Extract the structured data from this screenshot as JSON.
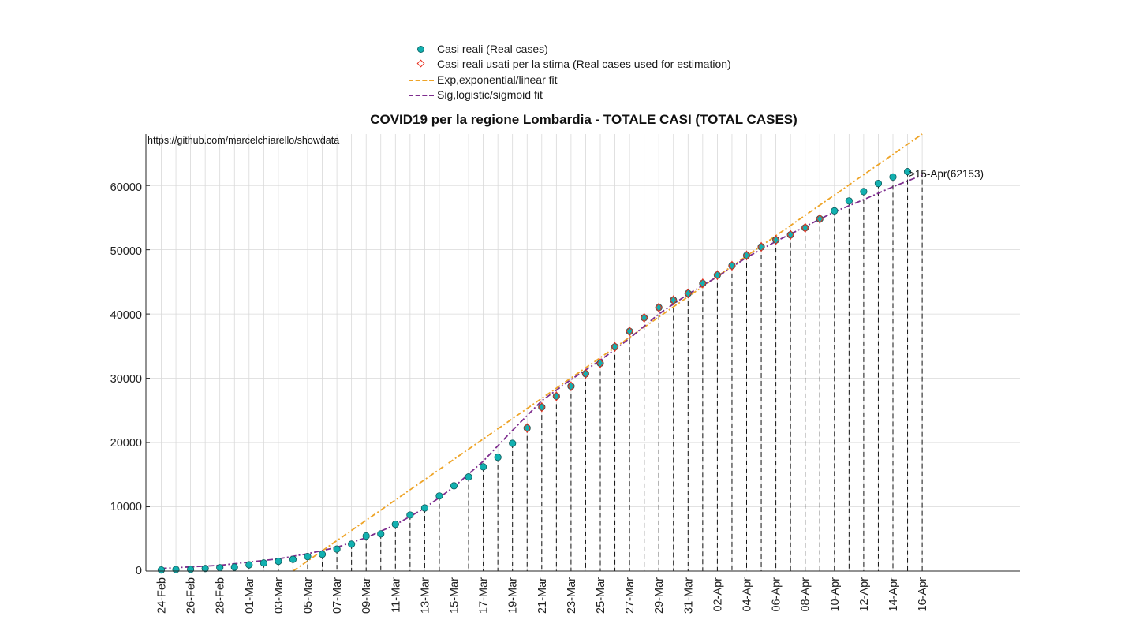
{
  "legend": {
    "items": [
      {
        "label": "Casi reali (Real cases)",
        "kind": "dot",
        "color": "#12b0b0"
      },
      {
        "label": "Casi reali usati per la stima (Real cases used for estimation)",
        "kind": "diamond",
        "color": "#e8301f"
      },
      {
        "label": "Exp,exponential/linear fit",
        "kind": "line",
        "color": "#eea428"
      },
      {
        "label": "Sig,logistic/sigmoid fit",
        "kind": "line",
        "color": "#7e2d8e"
      }
    ]
  },
  "watermark": "https://github.com/marcelchiarello/showdata",
  "chart_data": {
    "type": "scatter",
    "title": "COVID19 per la regione Lombardia - TOTALE CASI (TOTAL CASES)",
    "xlabel": "",
    "ylabel": "",
    "ylim": [
      0,
      68000
    ],
    "yticks": [
      0,
      10000,
      20000,
      30000,
      40000,
      50000,
      60000
    ],
    "ytick_labels": [
      "0",
      "10000",
      "20000",
      "30000",
      "40000",
      "50000",
      "60000"
    ],
    "grid": true,
    "xtick_labels": [
      "24-Feb",
      "26-Feb",
      "28-Feb",
      "01-Mar",
      "03-Mar",
      "05-Mar",
      "07-Mar",
      "09-Mar",
      "11-Mar",
      "13-Mar",
      "15-Mar",
      "17-Mar",
      "19-Mar",
      "21-Mar",
      "23-Mar",
      "25-Mar",
      "27-Mar",
      "29-Mar",
      "31-Mar",
      "02-Apr",
      "04-Apr",
      "06-Apr",
      "08-Apr",
      "10-Apr",
      "12-Apr",
      "14-Apr",
      "16-Apr"
    ],
    "x_start": "24-Feb",
    "x_days": 52,
    "series": [
      {
        "name": "Casi reali (Real cases)",
        "x_day": [
          0,
          1,
          2,
          3,
          4,
          5,
          6,
          7,
          8,
          9,
          10,
          11,
          12,
          13,
          14,
          15,
          16,
          17,
          18,
          19,
          20,
          21,
          22,
          23,
          24,
          25,
          26,
          27,
          28,
          29,
          30,
          31,
          32,
          33,
          34,
          35,
          36,
          37,
          38,
          39,
          40,
          41,
          42,
          43,
          44,
          45,
          46,
          47,
          48,
          49,
          50,
          51
        ],
        "values": [
          172,
          240,
          258,
          403,
          531,
          615,
          984,
          1254,
          1520,
          1820,
          2251,
          2612,
          3420,
          4189,
          5469,
          5791,
          7280,
          8725,
          9820,
          11685,
          13272,
          14649,
          16220,
          17713,
          19884,
          22264,
          25515,
          27206,
          28761,
          30703,
          32346,
          34889,
          37298,
          39415,
          41007,
          42161,
          43208,
          44773,
          46065,
          47520,
          49118,
          50455,
          51534,
          52325,
          53414,
          54802,
          56048,
          57592,
          59052,
          60314,
          61326,
          62153
        ]
      },
      {
        "name": "Casi reali usati per la stima (Real cases used for estimation)",
        "x_day": [
          25,
          26,
          27,
          28,
          29,
          30,
          31,
          32,
          33,
          34,
          35,
          36,
          37,
          38,
          39,
          40,
          41,
          42,
          43,
          44,
          45
        ],
        "values": [
          22264,
          25515,
          27206,
          28761,
          30703,
          32346,
          34889,
          37298,
          39415,
          41007,
          42161,
          43208,
          44773,
          46065,
          47520,
          49118,
          50455,
          51534,
          52325,
          53414,
          54802
        ]
      },
      {
        "name": "Exp,exponential/linear fit",
        "x_day": [
          9,
          52
        ],
        "values": [
          0,
          68000
        ]
      },
      {
        "name": "Sig,logistic/sigmoid fit",
        "x_day": [
          0,
          4,
          8,
          10,
          12,
          14,
          16,
          18,
          20,
          22,
          24,
          26,
          28,
          30,
          32,
          34,
          36,
          38,
          40,
          42,
          44,
          46,
          48,
          50,
          52
        ],
        "values": [
          400,
          900,
          1900,
          2700,
          3700,
          5200,
          7200,
          9800,
          13100,
          17100,
          21900,
          26500,
          29800,
          32800,
          36200,
          40000,
          43100,
          45800,
          48800,
          51300,
          53600,
          55900,
          57800,
          59800,
          61600
        ]
      }
    ],
    "dropped_lines_from_day": 5,
    "annotations": [
      "15-Apr(62153)"
    ]
  }
}
